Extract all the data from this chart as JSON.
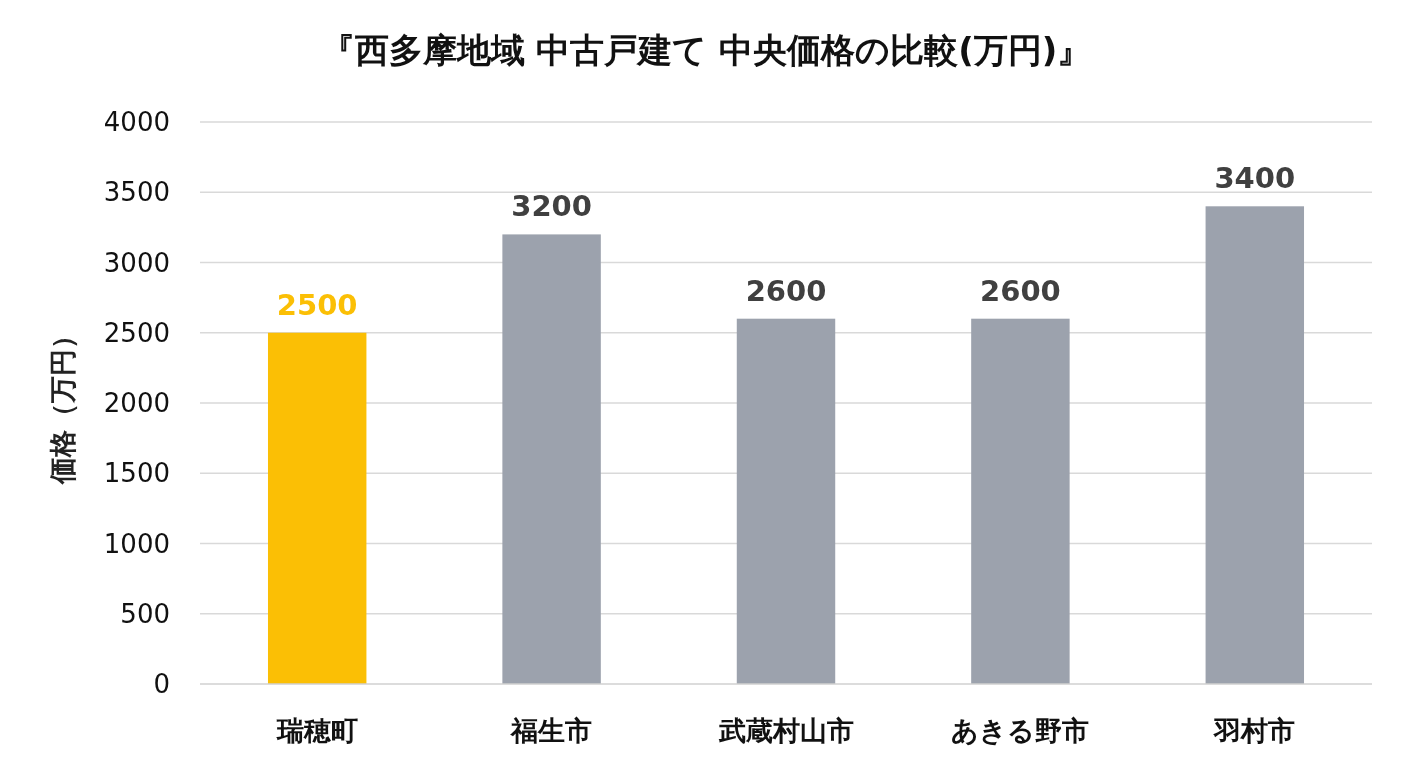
{
  "chart_data": {
    "type": "bar",
    "title": "『西多摩地域 中古戸建て 中央価格の比較(万円)』",
    "ylabel": "価格（万円）",
    "categories": [
      "瑞穂町",
      "福生市",
      "武蔵村山市",
      "あきる野市",
      "羽村市"
    ],
    "values": [
      2500,
      3200,
      2600,
      2600,
      3400
    ],
    "colors": [
      "#fbbf05",
      "#9ca2ad",
      "#9ca2ad",
      "#9ca2ad",
      "#9ca2ad"
    ],
    "ylim": [
      0,
      4000
    ],
    "yticks": [
      0,
      500,
      1000,
      1500,
      2000,
      2500,
      3000,
      3500,
      4000
    ],
    "grid": "y",
    "data_labels": true
  }
}
